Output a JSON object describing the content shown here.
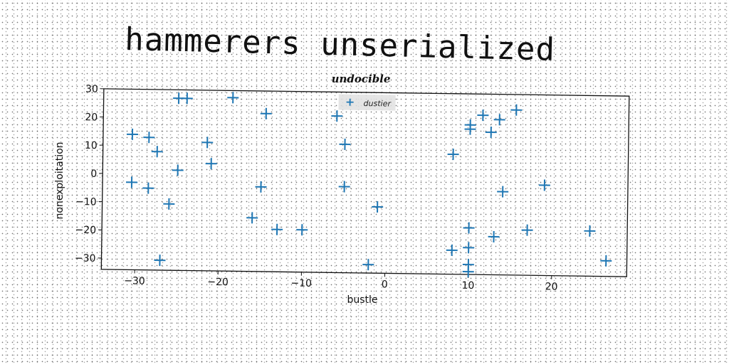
{
  "page": {
    "title": "hammerers unserialized"
  },
  "chart_data": {
    "type": "scatter",
    "title": "undocible",
    "xlabel": "bustle",
    "ylabel": "nonexploitation",
    "xlim": [
      -34,
      29
    ],
    "ylim": [
      -34,
      30
    ],
    "xticks": [
      -30,
      -20,
      -10,
      0,
      10,
      20
    ],
    "yticks": [
      -30,
      -20,
      -10,
      0,
      10,
      20,
      30
    ],
    "grid": false,
    "legend_position": "top-center",
    "series": [
      {
        "name": "dustier",
        "color": "#1f77b4",
        "marker": "plus",
        "points": [
          [
            -30.5,
            14
          ],
          [
            -28.5,
            13
          ],
          [
            -27.5,
            8
          ],
          [
            -30.5,
            -3
          ],
          [
            -28.5,
            -5
          ],
          [
            -25,
            27
          ],
          [
            -24,
            27
          ],
          [
            -18.5,
            27.5
          ],
          [
            -14.5,
            22
          ],
          [
            -21.5,
            11.5
          ],
          [
            -25,
            1.5
          ],
          [
            -21,
            4
          ],
          [
            -26,
            -10.5
          ],
          [
            -27,
            -30.5
          ],
          [
            -15,
            -4
          ],
          [
            -16,
            -15
          ],
          [
            -13,
            -19
          ],
          [
            -10,
            -19
          ],
          [
            -6,
            21.5
          ],
          [
            -5,
            11.5
          ],
          [
            -5,
            -3.5
          ],
          [
            -1,
            -10.5
          ],
          [
            -2,
            -31
          ],
          [
            8,
            8.5
          ],
          [
            10,
            19
          ],
          [
            10,
            17.5
          ],
          [
            11.5,
            22.5
          ],
          [
            12.5,
            16.5
          ],
          [
            13.5,
            21
          ],
          [
            15.5,
            24.5
          ],
          [
            14,
            -4.5
          ],
          [
            19,
            -2
          ],
          [
            10,
            -17.5
          ],
          [
            13,
            -20.5
          ],
          [
            17,
            -18
          ],
          [
            8,
            -25.5
          ],
          [
            10,
            -24.5
          ],
          [
            10,
            -30.5
          ],
          [
            10,
            -33
          ],
          [
            24.5,
            -18
          ],
          [
            26.5,
            -28.5
          ]
        ]
      }
    ]
  }
}
